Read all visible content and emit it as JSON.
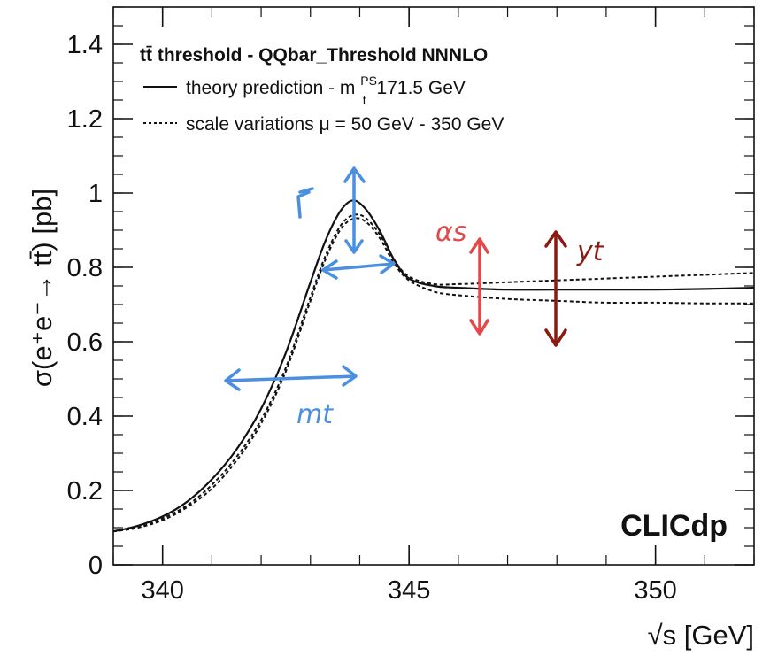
{
  "chart_data": {
    "type": "line",
    "title": "",
    "xlabel": "√s [GeV]",
    "ylabel": "σ(e⁺e⁻→ tt̄) [pb]",
    "xlim": [
      339,
      352
    ],
    "ylim": [
      0,
      1.5
    ],
    "xticks": [
      340,
      345,
      350
    ],
    "yticks": [
      0,
      0.2,
      0.4,
      0.6,
      0.8,
      1,
      1.2,
      1.4
    ],
    "xtick_labels": [
      "340",
      "345",
      "350"
    ],
    "ytick_labels": [
      "0",
      "0.2",
      "0.4",
      "0.6",
      "0.8",
      "1",
      "1.2",
      "1.4"
    ],
    "legend": {
      "title": "tt̄ threshold - QQbar_Threshold NNNLO",
      "entries": [
        {
          "style": "solid",
          "label": "theory prediction - m",
          "sup": "PS",
          "sub": "t",
          "suffix": " 171.5 GeV"
        },
        {
          "style": "dotted",
          "label": "scale variations μ = 50 GeV - 350 GeV"
        }
      ],
      "placement": "top-left"
    },
    "brand": "CLICdp",
    "series": [
      {
        "style": "solid",
        "x": [
          339.0,
          339.5,
          340.0,
          340.5,
          341.0,
          341.5,
          342.0,
          342.5,
          343.0,
          343.3,
          343.6,
          343.85,
          344.1,
          344.4,
          344.7,
          345.0,
          345.5,
          346.0,
          347.0,
          348.0,
          349.0,
          350.0,
          351.0,
          352.0
        ],
        "y": [
          0.09,
          0.105,
          0.13,
          0.17,
          0.23,
          0.31,
          0.42,
          0.57,
          0.76,
          0.87,
          0.95,
          0.98,
          0.96,
          0.9,
          0.82,
          0.77,
          0.75,
          0.745,
          0.74,
          0.74,
          0.74,
          0.74,
          0.742,
          0.745
        ]
      },
      {
        "style": "dotted",
        "x": [
          339.0,
          339.5,
          340.0,
          340.5,
          341.0,
          341.5,
          342.0,
          342.5,
          343.0,
          343.3,
          343.6,
          343.85,
          344.1,
          344.4,
          344.7,
          345.0,
          345.5,
          346.0,
          347.0,
          348.0,
          349.0,
          350.0,
          351.0,
          352.0
        ],
        "y": [
          0.09,
          0.1,
          0.125,
          0.16,
          0.215,
          0.29,
          0.39,
          0.53,
          0.72,
          0.83,
          0.91,
          0.94,
          0.935,
          0.89,
          0.82,
          0.775,
          0.755,
          0.755,
          0.76,
          0.765,
          0.77,
          0.775,
          0.78,
          0.785
        ]
      },
      {
        "style": "dotted",
        "x": [
          339.0,
          339.5,
          340.0,
          340.5,
          341.0,
          341.5,
          342.0,
          342.5,
          343.0,
          343.3,
          343.6,
          343.85,
          344.1,
          344.4,
          344.7,
          345.0,
          345.5,
          346.0,
          347.0,
          348.0,
          349.0,
          350.0,
          351.0,
          352.0
        ],
        "y": [
          0.09,
          0.1,
          0.12,
          0.155,
          0.205,
          0.28,
          0.38,
          0.52,
          0.71,
          0.82,
          0.9,
          0.93,
          0.925,
          0.88,
          0.81,
          0.765,
          0.735,
          0.725,
          0.715,
          0.71,
          0.705,
          0.705,
          0.703,
          0.703
        ]
      }
    ],
    "annotations": {
      "gamma_t": {
        "label": "Γt",
        "color": "#4a8fe0"
      },
      "m_t": {
        "label": "mt",
        "color": "#4a8fe0"
      },
      "alpha_s": {
        "label": "αs",
        "color": "#e04a4a"
      },
      "y_t": {
        "label": "yt",
        "color": "#8b1a10"
      }
    }
  }
}
